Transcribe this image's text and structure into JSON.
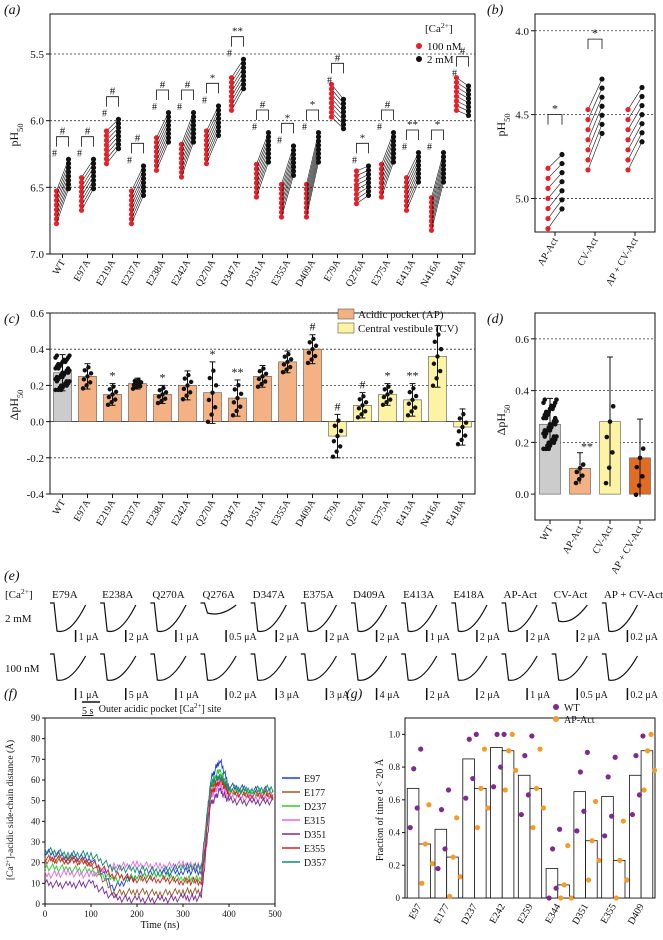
{
  "panel_labels": {
    "a": "(a)",
    "b": "(b)",
    "c": "(c)",
    "d": "(d)",
    "e": "(e)",
    "f": "(f)",
    "g": "(g)"
  },
  "chart_data": [
    {
      "id": "a",
      "type": "scatter",
      "ylabel": "pH50",
      "ylim": [
        7.0,
        5.2
      ],
      "yticks": [
        "5.5",
        "6.0",
        "6.5",
        "7.0"
      ],
      "ytick_values": [
        5.5,
        6.0,
        6.5,
        7.0
      ],
      "categories": [
        "WT",
        "E97A",
        "E219A",
        "E237A",
        "E238A",
        "E242A",
        "Q270A",
        "D347A",
        "D351A",
        "E355A",
        "D409A",
        "E79A",
        "Q276A",
        "E375A",
        "E413A",
        "N416A",
        "E418A"
      ],
      "legend": {
        "title": "[Ca2+]",
        "items": [
          {
            "name": "100 nM",
            "color": "#e8202a"
          },
          {
            "name": "2 mM",
            "color": "#111111"
          }
        ]
      },
      "series": [
        {
          "name": "100 nM",
          "color": "#e8202a",
          "values": [
            6.65,
            6.55,
            6.2,
            6.65,
            6.25,
            6.3,
            6.2,
            5.8,
            6.45,
            6.6,
            6.6,
            5.85,
            6.5,
            6.45,
            6.55,
            6.7,
            5.8
          ]
        },
        {
          "name": "2 mM",
          "color": "#111111",
          "values": [
            6.4,
            6.4,
            6.1,
            6.45,
            6.05,
            6.05,
            6.0,
            5.65,
            6.2,
            6.3,
            6.2,
            5.95,
            6.45,
            6.2,
            6.35,
            6.35,
            5.85
          ]
        }
      ],
      "significance": [
        "#",
        "#",
        "#",
        "#",
        "#",
        "#",
        "*",
        "**",
        "#",
        "*",
        "*",
        "#",
        "*",
        "#",
        "**",
        "*",
        "#"
      ]
    },
    {
      "id": "b",
      "type": "scatter",
      "ylabel": "pH50",
      "ylim": [
        5.2,
        3.9
      ],
      "yticks": [
        "4.0",
        "4.5",
        "5.0"
      ],
      "ytick_values": [
        4.0,
        4.5,
        5.0
      ],
      "categories": [
        "AP-Act",
        "CV-Act",
        "AP + CV-Act"
      ],
      "series": [
        {
          "name": "100 nM",
          "color": "#e8202a",
          "values": [
            5.0,
            4.65,
            4.65
          ]
        },
        {
          "name": "2 mM",
          "color": "#111111",
          "values": [
            4.9,
            4.45,
            4.5
          ]
        }
      ],
      "significance": [
        "*",
        "*",
        ""
      ]
    },
    {
      "id": "c",
      "type": "bar",
      "ylabel": "ΔpH50",
      "ylim": [
        -0.4,
        0.6
      ],
      "yticks": [
        "-0.4",
        "-0.2",
        "0.0",
        "0.2",
        "0.4",
        "0.6"
      ],
      "ytick_values": [
        -0.4,
        -0.2,
        0.0,
        0.2,
        0.4,
        0.6
      ],
      "categories": [
        "WT",
        "E97A",
        "E219A",
        "E237A",
        "E238A",
        "E242A",
        "Q270A",
        "D347A",
        "D351A",
        "E355A",
        "D409A",
        "E79A",
        "Q276A",
        "E375A",
        "E413A",
        "N416A",
        "E418A"
      ],
      "values": [
        0.27,
        0.25,
        0.15,
        0.21,
        0.15,
        0.2,
        0.16,
        0.13,
        0.25,
        0.33,
        0.4,
        -0.08,
        0.09,
        0.15,
        0.12,
        0.36,
        -0.03
      ],
      "errors": [
        0.1,
        0.07,
        0.06,
        0.03,
        0.05,
        0.08,
        0.17,
        0.1,
        0.06,
        0.06,
        0.08,
        0.12,
        0.07,
        0.06,
        0.09,
        0.17,
        0.1
      ],
      "group": [
        "wt",
        "ap",
        "ap",
        "ap",
        "ap",
        "ap",
        "ap",
        "ap",
        "ap",
        "ap",
        "ap",
        "cv",
        "cv",
        "cv",
        "cv",
        "cv",
        "cv"
      ],
      "legend": [
        {
          "name": "Acidic pocket (AP)",
          "color": "#f4b183"
        },
        {
          "name": "Central vestibule (CV)",
          "color": "#fdf3a5"
        }
      ],
      "significance": [
        "",
        "",
        "*",
        "",
        "*",
        "",
        "*",
        "**",
        "",
        "",
        "#",
        "#",
        "#",
        "*",
        "**",
        "",
        ""
      ]
    },
    {
      "id": "d",
      "type": "bar",
      "ylabel": "ΔpH50",
      "ylim": [
        -0.1,
        0.7
      ],
      "yticks": [
        "0.0",
        "0.2",
        "0.4",
        "0.6"
      ],
      "ytick_values": [
        0.0,
        0.2,
        0.4,
        0.6
      ],
      "categories": [
        "WT",
        "AP-Act",
        "CV-Act",
        "AP + CV-Act"
      ],
      "values": [
        0.27,
        0.1,
        0.28,
        0.14
      ],
      "errors": [
        0.1,
        0.06,
        0.25,
        0.15
      ],
      "colors": [
        "#cccccc",
        "#f4b183",
        "#fdf3a5",
        "#e36c25"
      ],
      "significance": [
        "",
        "**",
        "",
        ""
      ]
    },
    {
      "id": "f",
      "type": "line",
      "title": "Outer acidic pocket [Ca2+] site",
      "xlabel": "Time (ns)",
      "ylabel": "[Ca2+]-acidic side-chain distance (Å)",
      "xlim": [
        0,
        500
      ],
      "ylim": [
        0,
        90
      ],
      "xticks": [
        "0",
        "100",
        "200",
        "300",
        "400",
        "500"
      ],
      "xtick_values": [
        0,
        100,
        200,
        300,
        400,
        500
      ],
      "yticks": [
        "0",
        "10",
        "20",
        "30",
        "40",
        "50",
        "60",
        "70",
        "80",
        "90"
      ],
      "ytick_values": [
        0,
        10,
        20,
        30,
        40,
        50,
        60,
        70,
        80,
        90
      ],
      "series": [
        {
          "name": "E97",
          "color": "#1f3bde",
          "x": [
            0,
            50,
            100,
            150,
            200,
            250,
            300,
            340,
            360,
            380,
            400,
            450,
            500
          ],
          "y": [
            25,
            23,
            22,
            8,
            14,
            15,
            16,
            16,
            60,
            70,
            57,
            55,
            55
          ]
        },
        {
          "name": "E177",
          "color": "#9b5a2c",
          "x": [
            0,
            50,
            100,
            150,
            200,
            250,
            300,
            340,
            360,
            380,
            400,
            450,
            500
          ],
          "y": [
            21,
            22,
            20,
            5,
            6,
            5,
            6,
            6,
            55,
            62,
            53,
            52,
            52
          ]
        },
        {
          "name": "D237",
          "color": "#2ecc2e",
          "x": [
            0,
            50,
            100,
            150,
            200,
            250,
            300,
            340,
            360,
            380,
            400,
            450,
            500
          ],
          "y": [
            18,
            17,
            16,
            12,
            13,
            14,
            12,
            12,
            58,
            65,
            55,
            54,
            54
          ]
        },
        {
          "name": "E315",
          "color": "#e06ce0",
          "x": [
            0,
            50,
            100,
            150,
            200,
            250,
            300,
            340,
            360,
            380,
            400,
            450,
            500
          ],
          "y": [
            14,
            15,
            14,
            18,
            19,
            18,
            19,
            18,
            52,
            58,
            52,
            51,
            52
          ]
        },
        {
          "name": "D351",
          "color": "#7a2aa0",
          "x": [
            0,
            50,
            100,
            150,
            200,
            250,
            300,
            340,
            360,
            380,
            400,
            450,
            500
          ],
          "y": [
            10,
            9,
            10,
            3,
            2,
            2,
            3,
            3,
            48,
            55,
            50,
            49,
            50
          ]
        },
        {
          "name": "E355",
          "color": "#d42020",
          "x": [
            0,
            50,
            100,
            150,
            200,
            250,
            300,
            340,
            360,
            380,
            400,
            450,
            500
          ],
          "y": [
            22,
            21,
            20,
            14,
            12,
            12,
            11,
            11,
            53,
            60,
            54,
            53,
            53
          ]
        },
        {
          "name": "D357",
          "color": "#168a72",
          "x": [
            0,
            50,
            100,
            150,
            200,
            250,
            300,
            340,
            360,
            380,
            400,
            450,
            500
          ],
          "y": [
            26,
            24,
            24,
            17,
            17,
            16,
            18,
            18,
            58,
            62,
            56,
            55,
            56
          ]
        }
      ]
    },
    {
      "id": "g",
      "type": "bar",
      "ylabel": "Fraction of time d < 20 Å",
      "ylim": [
        0,
        1.1
      ],
      "yticks": [
        "0",
        "0.2",
        "0.4",
        "0.6",
        "0.8",
        "1.0"
      ],
      "ytick_values": [
        0,
        0.2,
        0.4,
        0.6,
        0.8,
        1.0
      ],
      "categories": [
        "E97",
        "E177",
        "D237",
        "E242",
        "E259",
        "E344",
        "D351",
        "E355",
        "D409"
      ],
      "legend": [
        {
          "name": "WT",
          "color": "#7b2d8e"
        },
        {
          "name": "AP-Act",
          "color": "#f39c2a"
        }
      ],
      "bars_wt": [
        0.67,
        0.42,
        0.85,
        0.92,
        0.75,
        0.18,
        0.65,
        0.62,
        0.75
      ],
      "bars_ap": [
        0.33,
        0.25,
        0.67,
        0.9,
        0.67,
        0.08,
        0.35,
        0.23,
        0.9
      ]
    }
  ],
  "panel_e": {
    "header": "[Ca2+]",
    "row_labels": [
      "2 mM",
      "100 nM"
    ],
    "columns": [
      "E79A",
      "E238A",
      "Q270A",
      "Q276A",
      "D347A",
      "E375A",
      "D409A",
      "E413A",
      "E418A",
      "AP-Act",
      "CV-Act",
      "AP + CV-Act"
    ],
    "scale_2mM": [
      "1 μA",
      "2 μA",
      "1 μA",
      "0.5 μA",
      "2 μA",
      "2 μA",
      "2 μA",
      "1 μA",
      "2 μA",
      "2 μA",
      "2 μA",
      "0.2 μA"
    ],
    "scale_100nM": [
      "1 μA",
      "5 μA",
      "1 μA",
      "0.2 μA",
      "3 μA",
      "3 μA",
      "4 μA",
      "2 μA",
      "2 μA",
      "1 μA",
      "0.5 μA",
      "0.2 μA"
    ],
    "time_bar": "5 s"
  }
}
